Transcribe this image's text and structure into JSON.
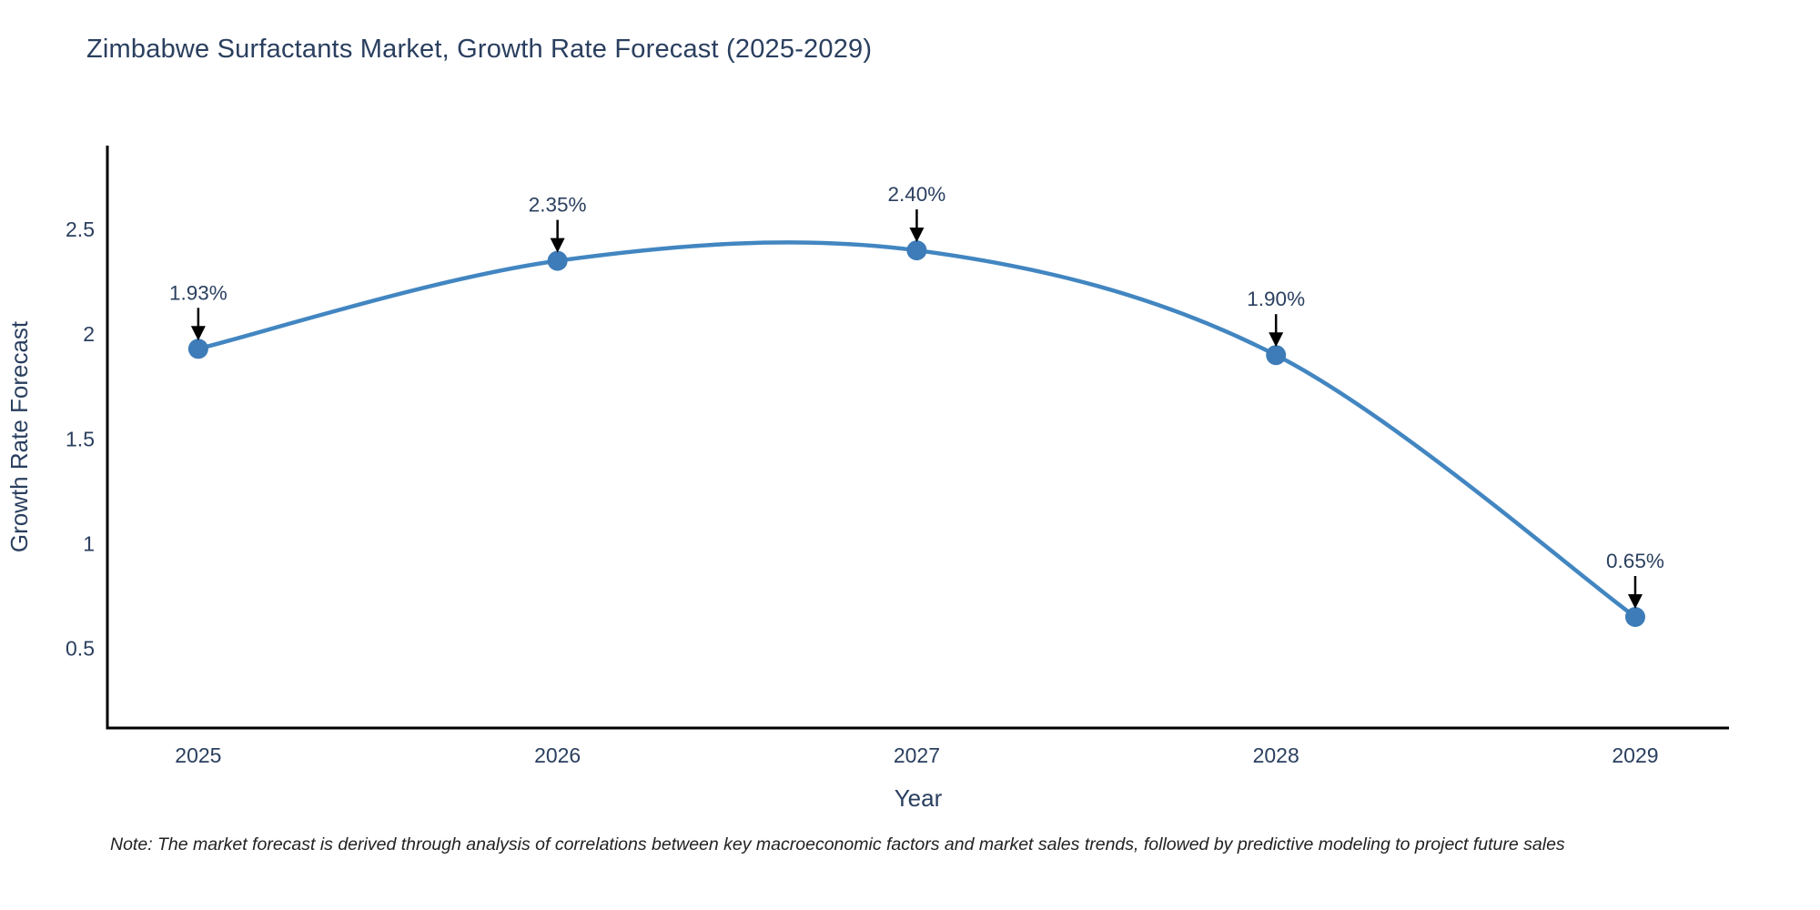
{
  "chart_data": {
    "type": "line",
    "title": "Zimbabwe Surfactants Market, Growth Rate Forecast (2025-2029)",
    "xlabel": "Year",
    "ylabel": "Growth Rate Forecast",
    "x": [
      2025,
      2026,
      2027,
      2028,
      2029
    ],
    "series": [
      {
        "name": "Growth Rate Forecast",
        "values": [
          1.93,
          2.35,
          2.4,
          1.9,
          0.65
        ],
        "point_labels": [
          "1.93%",
          "2.35%",
          "2.40%",
          "1.90%",
          "0.65%"
        ]
      }
    ],
    "xtick_labels": [
      "2025",
      "2026",
      "2027",
      "2028",
      "2029"
    ],
    "ytick_values": [
      0.5,
      1,
      1.5,
      2,
      2.5
    ],
    "ytick_labels": [
      "0.5",
      "1",
      "1.5",
      "2",
      "2.5"
    ],
    "xlim": [
      2024.747,
      2029.261
    ],
    "ylim": [
      0.12,
      2.9
    ],
    "grid": false,
    "legend_position": "none",
    "line_shape": "spline",
    "annotations_have_arrows": true,
    "colors": {
      "line": "#4286c1",
      "marker": "#3d7cb8",
      "axis": "#000000",
      "text": "#2a3f5f",
      "annotation_text": "#2a3f5f",
      "annotation_arrow": "#000000",
      "note_text": "#222222",
      "background": "#ffffff"
    }
  },
  "note": "Note: The market forecast is derived through analysis of correlations between key macroeconomic factors and market sales trends, followed by predictive modeling to project future sales"
}
